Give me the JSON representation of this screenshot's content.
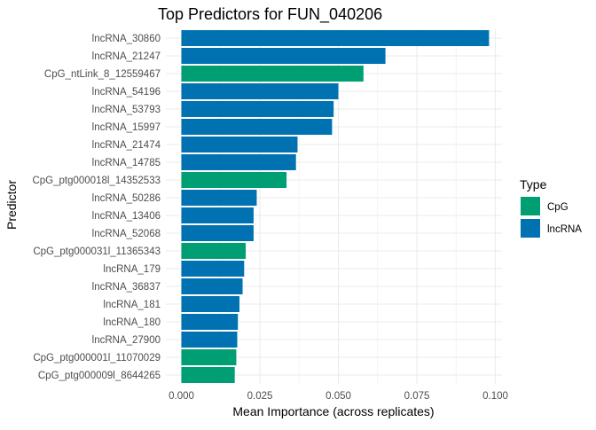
{
  "chart_data": {
    "type": "bar",
    "orientation": "horizontal",
    "title": "Top Predictors for FUN_040206",
    "xlabel": "Mean Importance (across replicates)",
    "ylabel": "Predictor",
    "xlim": [
      0,
      0.1
    ],
    "xticks": [
      0.0,
      0.025,
      0.05,
      0.075,
      0.1
    ],
    "xtick_labels": [
      "0.000",
      "0.025",
      "0.050",
      "0.075",
      "0.100"
    ],
    "grid": true,
    "legend": {
      "title": "Type",
      "position": "right",
      "entries": [
        {
          "label": "CpG",
          "color": "#009E73"
        },
        {
          "label": "lncRNA",
          "color": "#0072B2"
        }
      ]
    },
    "bars": [
      {
        "label": "lncRNA_30860",
        "value": 0.098,
        "type": "lncRNA"
      },
      {
        "label": "lncRNA_21247",
        "value": 0.065,
        "type": "lncRNA"
      },
      {
        "label": "CpG_ntLink_8_12559467",
        "value": 0.058,
        "type": "CpG"
      },
      {
        "label": "lncRNA_54196",
        "value": 0.05,
        "type": "lncRNA"
      },
      {
        "label": "lncRNA_53793",
        "value": 0.0485,
        "type": "lncRNA"
      },
      {
        "label": "lncRNA_15997",
        "value": 0.048,
        "type": "lncRNA"
      },
      {
        "label": "lncRNA_21474",
        "value": 0.037,
        "type": "lncRNA"
      },
      {
        "label": "lncRNA_14785",
        "value": 0.0365,
        "type": "lncRNA"
      },
      {
        "label": "CpG_ptg000018l_14352533",
        "value": 0.0335,
        "type": "CpG"
      },
      {
        "label": "lncRNA_50286",
        "value": 0.024,
        "type": "lncRNA"
      },
      {
        "label": "lncRNA_13406",
        "value": 0.023,
        "type": "lncRNA"
      },
      {
        "label": "lncRNA_52068",
        "value": 0.023,
        "type": "lncRNA"
      },
      {
        "label": "CpG_ptg000031l_11365343",
        "value": 0.0205,
        "type": "CpG"
      },
      {
        "label": "lncRNA_179",
        "value": 0.02,
        "type": "lncRNA"
      },
      {
        "label": "lncRNA_36837",
        "value": 0.0195,
        "type": "lncRNA"
      },
      {
        "label": "lncRNA_181",
        "value": 0.0185,
        "type": "lncRNA"
      },
      {
        "label": "lncRNA_180",
        "value": 0.018,
        "type": "lncRNA"
      },
      {
        "label": "lncRNA_27900",
        "value": 0.0178,
        "type": "lncRNA"
      },
      {
        "label": "CpG_ptg000001l_11070029",
        "value": 0.0175,
        "type": "CpG"
      },
      {
        "label": "CpG_ptg000009l_8644265",
        "value": 0.017,
        "type": "CpG"
      }
    ]
  }
}
